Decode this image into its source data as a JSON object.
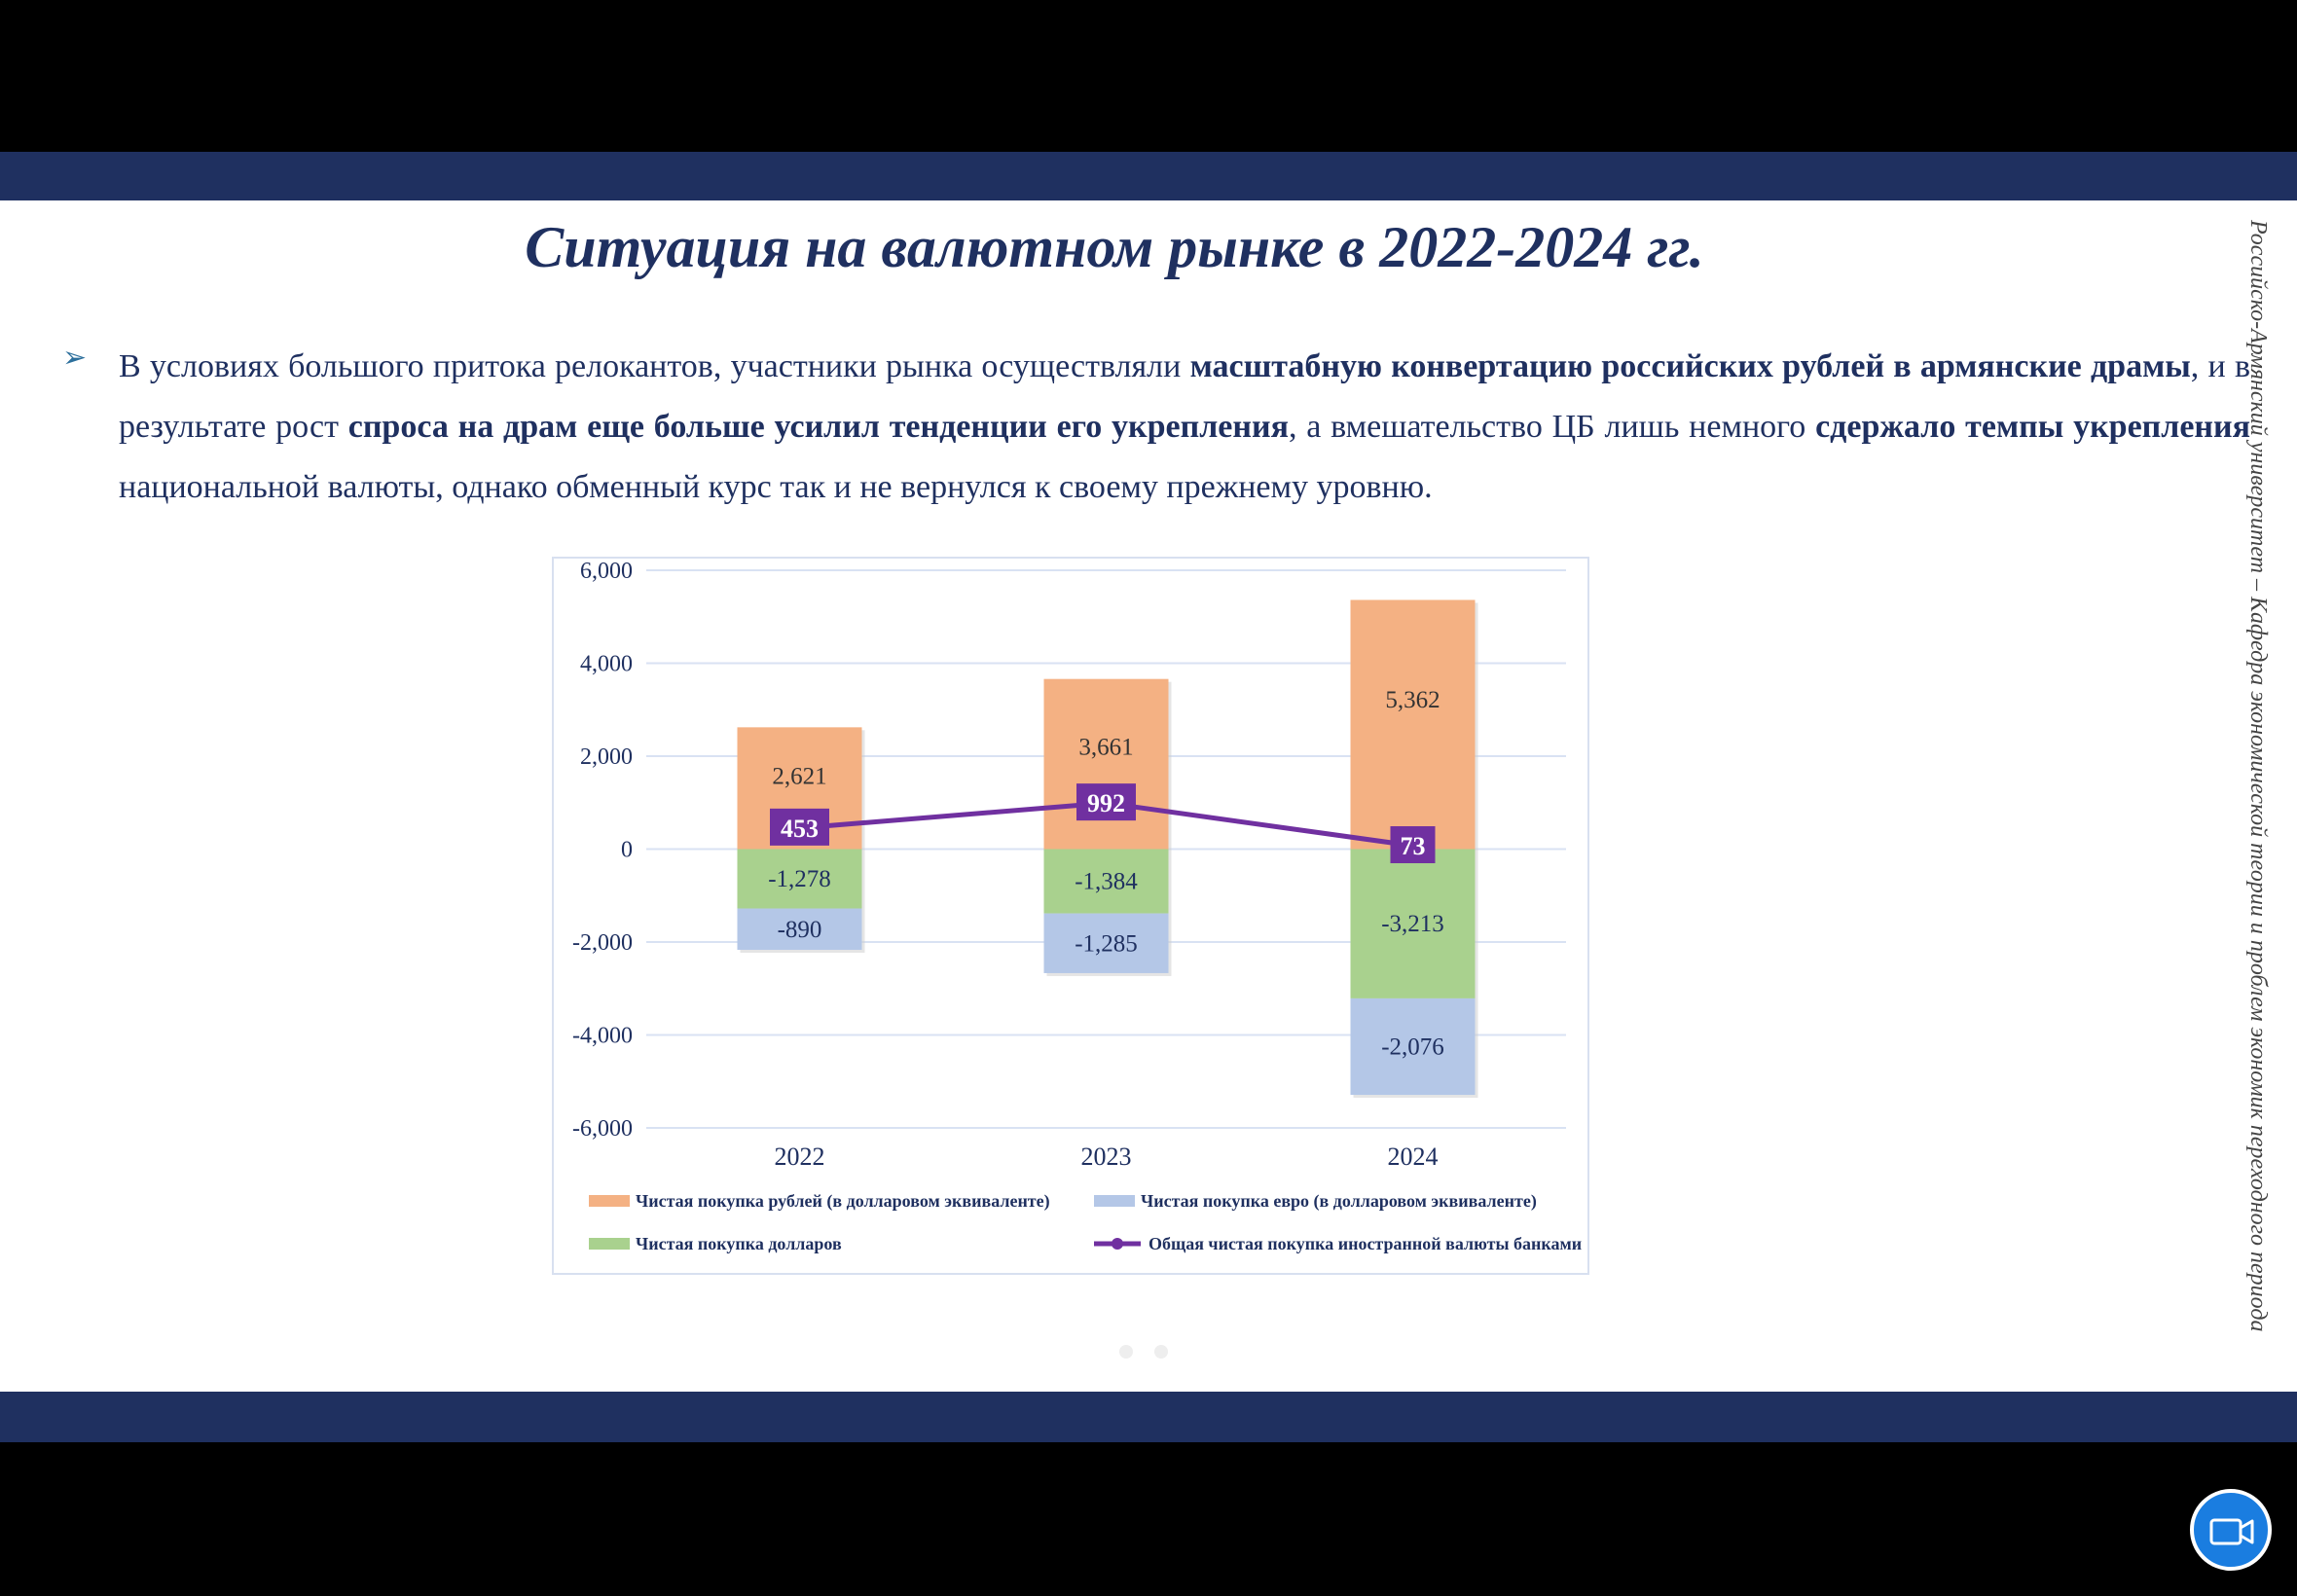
{
  "slide": {
    "title": "Ситуация на валютном рынке в 2022-2024 гг.",
    "bullet": [
      {
        "t": "В условиях большого притока релокантов, участники рынка осуществляли ",
        "b": false
      },
      {
        "t": "масштабную конвертацию российских рублей в армянские драмы",
        "b": true
      },
      {
        "t": ", и в результате рост ",
        "b": false
      },
      {
        "t": "спроса на драм еще больше усилил тенденции его укрепления",
        "b": true
      },
      {
        "t": ", а вмешательство ЦБ лишь немного ",
        "b": false
      },
      {
        "t": "сдержало темпы укрепления",
        "b": true
      },
      {
        "t": " национальной валюты, однако обменный курс так и не вернулся к своему прежнему уровню.",
        "b": false
      }
    ],
    "side_text": "Российско-Армянский университет – Кафедра экономической теории и проблем экономик переходного периода",
    "bullet_icon": "arrow-bullet-icon"
  },
  "colors": {
    "band": "#1f3060",
    "rubles": "#f4b183",
    "dollars": "#a9d18e",
    "euro": "#b4c7e7",
    "total": "#7030a0"
  },
  "chart_data": {
    "type": "bar",
    "stacked": true,
    "categories": [
      "2022",
      "2023",
      "2024"
    ],
    "ylim": [
      -6000,
      6000
    ],
    "yticks": [
      6000,
      4000,
      2000,
      0,
      -2000,
      -4000,
      -6000
    ],
    "ytick_labels": [
      "6,000",
      "4,000",
      "2,000",
      "0",
      "-2,000",
      "-4,000",
      "-6,000"
    ],
    "grid": true,
    "legend_position": "bottom",
    "series": [
      {
        "name": "Чистая покупка рублей (в долларовом эквиваленте)",
        "kind": "bar",
        "values": [
          2621,
          3661,
          5362
        ],
        "labels": [
          "2,621",
          "3,661",
          "5,362"
        ]
      },
      {
        "name": "Чистая покупка долларов",
        "kind": "bar",
        "values": [
          -1278,
          -1384,
          -3213
        ],
        "labels": [
          "-1,278",
          "-1,384",
          "-3,213"
        ]
      },
      {
        "name": "Чистая покупка евро (в долларовом эквиваленте)",
        "kind": "bar",
        "values": [
          -890,
          -1285,
          -2076
        ],
        "labels": [
          "-890",
          "-1,285",
          "-2,076"
        ]
      },
      {
        "name": "Общая чистая покупка иностранной валюты банками",
        "kind": "line",
        "values": [
          453,
          992,
          73
        ],
        "labels": [
          "453",
          "992",
          "73"
        ]
      }
    ]
  },
  "ui": {
    "camera_icon": "video-camera-icon"
  }
}
